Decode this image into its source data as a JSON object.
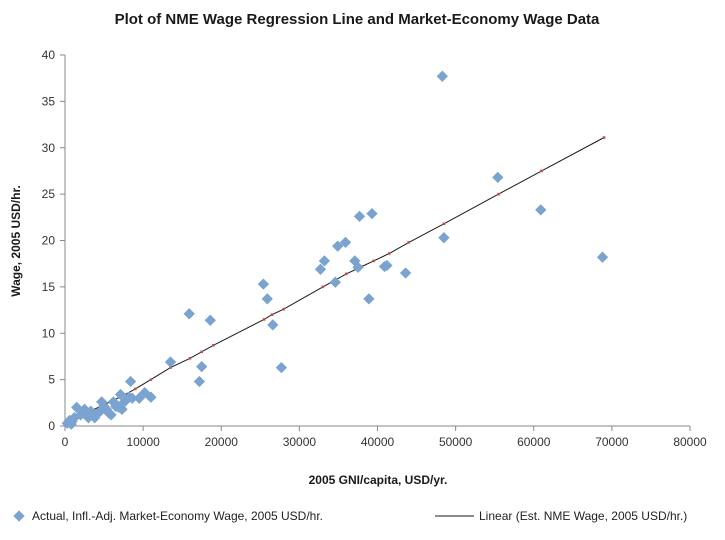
{
  "chart_data": {
    "type": "scatter",
    "title": "Plot of NME Wage Regression Line and Market-Economy Wage Data",
    "xlabel": "2005 GNI/capita, USD/yr.",
    "ylabel": "Wage, 2005 USD/hr.",
    "xlim": [
      0,
      80000
    ],
    "ylim": [
      0,
      40
    ],
    "xticks": [
      "0",
      "10000",
      "20000",
      "30000",
      "40000",
      "50000",
      "60000",
      "70000",
      "80000"
    ],
    "yticks": [
      "0",
      "5",
      "10",
      "15",
      "20",
      "25",
      "30",
      "35",
      "40"
    ],
    "grid": false,
    "legend_position": "bottom",
    "colors": {
      "scatter": "#7aa3cf",
      "line": "#1a1a1a",
      "line_marker": "#c0504d"
    },
    "series": [
      {
        "name": "Actual, Infl.-Adj. Market-Economy Wage, 2005 USD/hr.",
        "type": "scatter",
        "points": [
          [
            300,
            0.3
          ],
          [
            600,
            0.6
          ],
          [
            900,
            0.5
          ],
          [
            1200,
            0.9
          ],
          [
            1500,
            2.0
          ],
          [
            800,
            0.2
          ],
          [
            2000,
            1.2
          ],
          [
            2500,
            1.8
          ],
          [
            2800,
            1.4
          ],
          [
            3000,
            0.9
          ],
          [
            3300,
            1.6
          ],
          [
            3600,
            1.2
          ],
          [
            3800,
            0.9
          ],
          [
            4100,
            1.3
          ],
          [
            4500,
            1.6
          ],
          [
            4700,
            2.6
          ],
          [
            5000,
            2.1
          ],
          [
            5300,
            1.8
          ],
          [
            5600,
            1.4
          ],
          [
            5900,
            1.2
          ],
          [
            6200,
            2.6
          ],
          [
            6500,
            2.1
          ],
          [
            6900,
            2.0
          ],
          [
            7100,
            3.4
          ],
          [
            7300,
            1.8
          ],
          [
            7600,
            2.6
          ],
          [
            8200,
            3.1
          ],
          [
            8400,
            4.8
          ],
          [
            8600,
            3.0
          ],
          [
            9500,
            3.0
          ],
          [
            10200,
            3.6
          ],
          [
            11000,
            3.1
          ],
          [
            13500,
            6.9
          ],
          [
            15900,
            12.1
          ],
          [
            17200,
            4.8
          ],
          [
            17500,
            6.4
          ],
          [
            18600,
            11.4
          ],
          [
            25400,
            15.3
          ],
          [
            25900,
            13.7
          ],
          [
            26600,
            10.9
          ],
          [
            27700,
            6.3
          ],
          [
            32700,
            16.9
          ],
          [
            33200,
            17.8
          ],
          [
            34600,
            15.5
          ],
          [
            34900,
            19.4
          ],
          [
            35900,
            19.8
          ],
          [
            37100,
            17.8
          ],
          [
            37500,
            17.1
          ],
          [
            37700,
            22.6
          ],
          [
            38900,
            13.7
          ],
          [
            39300,
            22.9
          ],
          [
            40900,
            17.2
          ],
          [
            41200,
            17.3
          ],
          [
            43600,
            16.5
          ],
          [
            48300,
            37.7
          ],
          [
            48500,
            20.3
          ],
          [
            55400,
            26.8
          ],
          [
            60900,
            23.3
          ],
          [
            68800,
            18.2
          ]
        ]
      },
      {
        "name": "Linear (Est. NME Wage, 2005 USD/hr.)",
        "type": "line",
        "points": [
          [
            0,
            0.1
          ],
          [
            700,
            0.4
          ],
          [
            1500,
            0.8
          ],
          [
            3000,
            1.5
          ],
          [
            4500,
            2.1
          ],
          [
            6000,
            2.7
          ],
          [
            7500,
            3.3
          ],
          [
            9000,
            4.0
          ],
          [
            11000,
            5.0
          ],
          [
            13500,
            6.3
          ],
          [
            16000,
            7.3
          ],
          [
            17500,
            8.0
          ],
          [
            19000,
            8.7
          ],
          [
            25500,
            11.5
          ],
          [
            26500,
            12.0
          ],
          [
            28000,
            12.6
          ],
          [
            33000,
            15.0
          ],
          [
            36000,
            16.4
          ],
          [
            38000,
            17.2
          ],
          [
            39500,
            17.8
          ],
          [
            41500,
            18.6
          ],
          [
            44000,
            19.8
          ],
          [
            48500,
            21.8
          ],
          [
            55500,
            25.0
          ],
          [
            61000,
            27.5
          ],
          [
            69000,
            31.1
          ]
        ]
      }
    ]
  }
}
